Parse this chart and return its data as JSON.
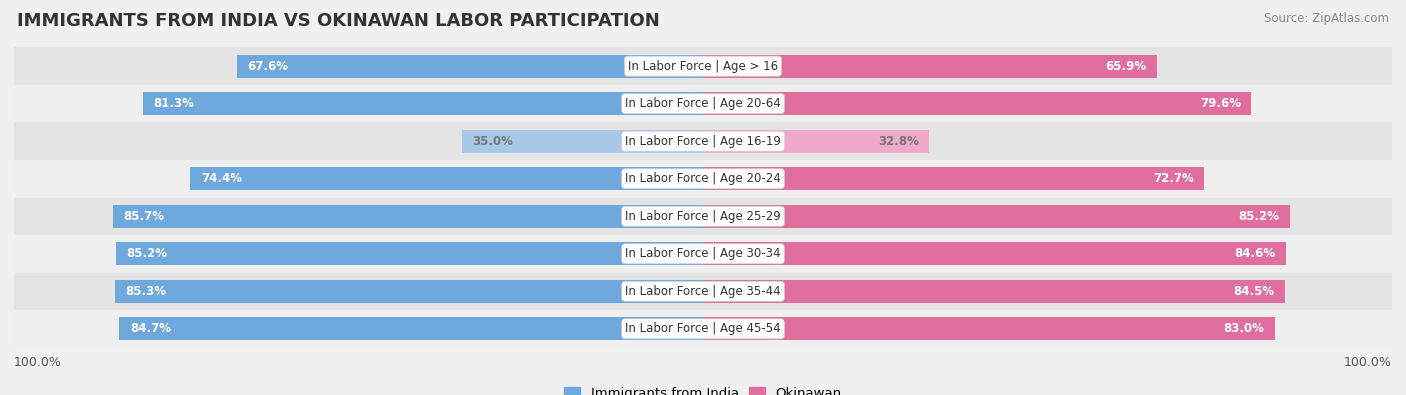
{
  "title": "IMMIGRANTS FROM INDIA VS OKINAWAN LABOR PARTICIPATION",
  "source": "Source: ZipAtlas.com",
  "categories": [
    "In Labor Force | Age > 16",
    "In Labor Force | Age 20-64",
    "In Labor Force | Age 16-19",
    "In Labor Force | Age 20-24",
    "In Labor Force | Age 25-29",
    "In Labor Force | Age 30-34",
    "In Labor Force | Age 35-44",
    "In Labor Force | Age 45-54"
  ],
  "india_values": [
    67.6,
    81.3,
    35.0,
    74.4,
    85.7,
    85.2,
    85.3,
    84.7
  ],
  "okinawan_values": [
    65.9,
    79.6,
    32.8,
    72.7,
    85.2,
    84.6,
    84.5,
    83.0
  ],
  "india_color": "#6fa8dc",
  "india_color_light": "#a8c8e8",
  "okinawan_color": "#e06fa0",
  "okinawan_color_light": "#eeaac8",
  "row_bg_color_dark": "#e4e4e4",
  "row_bg_color_light": "#efefef",
  "max_value": 100.0,
  "legend_india": "Immigrants from India",
  "legend_okinawan": "Okinawan",
  "title_fontsize": 13,
  "label_fontsize": 8.5,
  "value_fontsize": 8.5,
  "axis_label_fontsize": 9.0,
  "bar_height": 0.62
}
